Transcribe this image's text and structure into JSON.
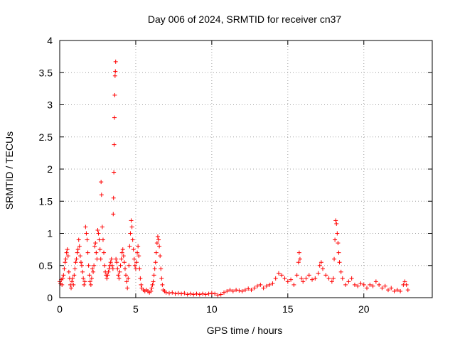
{
  "chart_data": {
    "type": "scatter",
    "title": "Day 006 of 2024, SRMTID for receiver cn37",
    "xlabel": "GPS time / hours",
    "ylabel": "SRMTID / TECUs",
    "xlim": [
      0,
      24.5
    ],
    "ylim": [
      0,
      4
    ],
    "xticks": [
      0,
      5,
      10,
      15,
      20
    ],
    "xtick_labels": [
      "0",
      "5",
      "10",
      "15",
      "20"
    ],
    "yticks": [
      0,
      0.5,
      1,
      1.5,
      2,
      2.5,
      3,
      3.5,
      4
    ],
    "ytick_labels": [
      "0",
      "0.5",
      "1",
      "1.5",
      "2",
      "2.5",
      "3",
      "3.5",
      "4"
    ],
    "grid": true,
    "marker": "+",
    "marker_color": "#ff0000",
    "series": [
      {
        "name": "SRMTID",
        "points": [
          [
            0.0,
            0.25
          ],
          [
            0.05,
            0.22
          ],
          [
            0.1,
            0.28
          ],
          [
            0.15,
            0.2
          ],
          [
            0.2,
            0.3
          ],
          [
            0.25,
            0.35
          ],
          [
            0.3,
            0.45
          ],
          [
            0.35,
            0.55
          ],
          [
            0.4,
            0.6
          ],
          [
            0.45,
            0.7
          ],
          [
            0.5,
            0.75
          ],
          [
            0.55,
            0.65
          ],
          [
            0.6,
            0.4
          ],
          [
            0.65,
            0.3
          ],
          [
            0.7,
            0.2
          ],
          [
            0.75,
            0.15
          ],
          [
            0.8,
            0.25
          ],
          [
            0.85,
            0.3
          ],
          [
            0.9,
            0.2
          ],
          [
            0.95,
            0.35
          ],
          [
            1.0,
            0.45
          ],
          [
            1.05,
            0.55
          ],
          [
            1.1,
            0.6
          ],
          [
            1.15,
            0.7
          ],
          [
            1.2,
            0.75
          ],
          [
            1.25,
            0.9
          ],
          [
            1.3,
            0.8
          ],
          [
            1.35,
            0.65
          ],
          [
            1.4,
            0.55
          ],
          [
            1.45,
            0.5
          ],
          [
            1.5,
            0.4
          ],
          [
            1.55,
            0.3
          ],
          [
            1.6,
            0.2
          ],
          [
            1.65,
            0.25
          ],
          [
            1.7,
            1.1
          ],
          [
            1.75,
            1.0
          ],
          [
            1.8,
            0.9
          ],
          [
            1.85,
            0.7
          ],
          [
            1.9,
            0.5
          ],
          [
            1.95,
            0.35
          ],
          [
            2.0,
            0.25
          ],
          [
            2.05,
            0.2
          ],
          [
            2.1,
            0.3
          ],
          [
            2.15,
            0.45
          ],
          [
            2.2,
            0.4
          ],
          [
            2.25,
            0.5
          ],
          [
            2.3,
            0.8
          ],
          [
            2.35,
            0.85
          ],
          [
            2.4,
            0.7
          ],
          [
            2.45,
            0.6
          ],
          [
            2.5,
            1.05
          ],
          [
            2.55,
            1.0
          ],
          [
            2.6,
            0.9
          ],
          [
            2.65,
            0.75
          ],
          [
            2.7,
            0.6
          ],
          [
            2.72,
            1.8
          ],
          [
            2.75,
            1.6
          ],
          [
            2.8,
            1.1
          ],
          [
            2.85,
            0.9
          ],
          [
            2.9,
            0.7
          ],
          [
            2.95,
            0.5
          ],
          [
            3.0,
            0.4
          ],
          [
            3.05,
            0.35
          ],
          [
            3.1,
            0.3
          ],
          [
            3.15,
            0.35
          ],
          [
            3.2,
            0.4
          ],
          [
            3.25,
            0.45
          ],
          [
            3.3,
            0.5
          ],
          [
            3.35,
            0.55
          ],
          [
            3.4,
            0.6
          ],
          [
            3.45,
            0.5
          ],
          [
            3.5,
            0.45
          ],
          [
            3.52,
            1.3
          ],
          [
            3.54,
            1.55
          ],
          [
            3.56,
            1.95
          ],
          [
            3.58,
            2.38
          ],
          [
            3.6,
            2.8
          ],
          [
            3.62,
            3.15
          ],
          [
            3.64,
            3.45
          ],
          [
            3.66,
            3.52
          ],
          [
            3.68,
            3.67
          ],
          [
            3.7,
            0.6
          ],
          [
            3.75,
            0.55
          ],
          [
            3.8,
            0.45
          ],
          [
            3.85,
            0.35
          ],
          [
            3.9,
            0.3
          ],
          [
            3.95,
            0.4
          ],
          [
            4.0,
            0.5
          ],
          [
            4.05,
            0.6
          ],
          [
            4.1,
            0.7
          ],
          [
            4.15,
            0.75
          ],
          [
            4.2,
            0.65
          ],
          [
            4.25,
            0.55
          ],
          [
            4.3,
            0.45
          ],
          [
            4.35,
            0.35
          ],
          [
            4.4,
            0.25
          ],
          [
            4.45,
            0.15
          ],
          [
            4.5,
            0.3
          ],
          [
            4.55,
            0.5
          ],
          [
            4.6,
            0.8
          ],
          [
            4.65,
            1.0
          ],
          [
            4.7,
            1.2
          ],
          [
            4.75,
            1.1
          ],
          [
            4.8,
            0.9
          ],
          [
            4.85,
            0.75
          ],
          [
            4.9,
            0.6
          ],
          [
            4.95,
            0.5
          ],
          [
            5.0,
            0.45
          ],
          [
            5.05,
            0.55
          ],
          [
            5.1,
            0.7
          ],
          [
            5.15,
            0.8
          ],
          [
            5.2,
            0.65
          ],
          [
            5.25,
            0.45
          ],
          [
            5.3,
            0.3
          ],
          [
            5.35,
            0.2
          ],
          [
            5.4,
            0.15
          ],
          [
            5.5,
            0.12
          ],
          [
            5.6,
            0.1
          ],
          [
            5.7,
            0.12
          ],
          [
            5.8,
            0.1
          ],
          [
            5.9,
            0.08
          ],
          [
            6.0,
            0.1
          ],
          [
            6.05,
            0.15
          ],
          [
            6.1,
            0.2
          ],
          [
            6.15,
            0.25
          ],
          [
            6.2,
            0.35
          ],
          [
            6.25,
            0.45
          ],
          [
            6.3,
            0.55
          ],
          [
            6.35,
            0.7
          ],
          [
            6.4,
            0.85
          ],
          [
            6.45,
            0.95
          ],
          [
            6.5,
            0.9
          ],
          [
            6.55,
            0.8
          ],
          [
            6.6,
            0.65
          ],
          [
            6.65,
            0.45
          ],
          [
            6.7,
            0.3
          ],
          [
            6.75,
            0.2
          ],
          [
            6.8,
            0.12
          ],
          [
            6.9,
            0.1
          ],
          [
            7.0,
            0.08
          ],
          [
            7.2,
            0.07
          ],
          [
            7.4,
            0.08
          ],
          [
            7.6,
            0.06
          ],
          [
            7.8,
            0.07
          ],
          [
            8.0,
            0.06
          ],
          [
            8.2,
            0.07
          ],
          [
            8.4,
            0.05
          ],
          [
            8.6,
            0.06
          ],
          [
            8.8,
            0.05
          ],
          [
            9.0,
            0.06
          ],
          [
            9.2,
            0.05
          ],
          [
            9.4,
            0.06
          ],
          [
            9.6,
            0.05
          ],
          [
            9.8,
            0.06
          ],
          [
            10.0,
            0.07
          ],
          [
            10.2,
            0.06
          ],
          [
            10.4,
            0.04
          ],
          [
            10.6,
            0.05
          ],
          [
            10.8,
            0.08
          ],
          [
            11.0,
            0.1
          ],
          [
            11.2,
            0.12
          ],
          [
            11.4,
            0.1
          ],
          [
            11.6,
            0.12
          ],
          [
            11.8,
            0.11
          ],
          [
            12.0,
            0.1
          ],
          [
            12.2,
            0.12
          ],
          [
            12.4,
            0.14
          ],
          [
            12.6,
            0.12
          ],
          [
            12.8,
            0.15
          ],
          [
            13.0,
            0.18
          ],
          [
            13.2,
            0.2
          ],
          [
            13.4,
            0.15
          ],
          [
            13.6,
            0.18
          ],
          [
            13.8,
            0.2
          ],
          [
            14.0,
            0.22
          ],
          [
            14.2,
            0.3
          ],
          [
            14.4,
            0.38
          ],
          [
            14.6,
            0.35
          ],
          [
            14.8,
            0.3
          ],
          [
            15.0,
            0.25
          ],
          [
            15.2,
            0.28
          ],
          [
            15.4,
            0.2
          ],
          [
            15.6,
            0.35
          ],
          [
            15.7,
            0.55
          ],
          [
            15.75,
            0.7
          ],
          [
            15.8,
            0.6
          ],
          [
            15.9,
            0.3
          ],
          [
            16.0,
            0.25
          ],
          [
            16.2,
            0.3
          ],
          [
            16.4,
            0.35
          ],
          [
            16.6,
            0.28
          ],
          [
            16.8,
            0.3
          ],
          [
            17.0,
            0.38
          ],
          [
            17.1,
            0.5
          ],
          [
            17.2,
            0.55
          ],
          [
            17.3,
            0.45
          ],
          [
            17.5,
            0.35
          ],
          [
            17.7,
            0.3
          ],
          [
            17.9,
            0.25
          ],
          [
            18.0,
            0.3
          ],
          [
            18.05,
            0.6
          ],
          [
            18.1,
            0.9
          ],
          [
            18.15,
            1.2
          ],
          [
            18.2,
            1.15
          ],
          [
            18.25,
            1.0
          ],
          [
            18.3,
            0.85
          ],
          [
            18.35,
            0.7
          ],
          [
            18.4,
            0.55
          ],
          [
            18.5,
            0.4
          ],
          [
            18.6,
            0.3
          ],
          [
            18.8,
            0.2
          ],
          [
            19.0,
            0.25
          ],
          [
            19.2,
            0.3
          ],
          [
            19.4,
            0.2
          ],
          [
            19.6,
            0.18
          ],
          [
            19.8,
            0.22
          ],
          [
            20.0,
            0.2
          ],
          [
            20.2,
            0.15
          ],
          [
            20.4,
            0.2
          ],
          [
            20.6,
            0.18
          ],
          [
            20.8,
            0.25
          ],
          [
            21.0,
            0.2
          ],
          [
            21.2,
            0.15
          ],
          [
            21.4,
            0.18
          ],
          [
            21.6,
            0.12
          ],
          [
            21.8,
            0.15
          ],
          [
            22.0,
            0.1
          ],
          [
            22.2,
            0.12
          ],
          [
            22.4,
            0.1
          ],
          [
            22.6,
            0.2
          ],
          [
            22.7,
            0.25
          ],
          [
            22.8,
            0.2
          ],
          [
            22.9,
            0.12
          ]
        ]
      }
    ]
  }
}
